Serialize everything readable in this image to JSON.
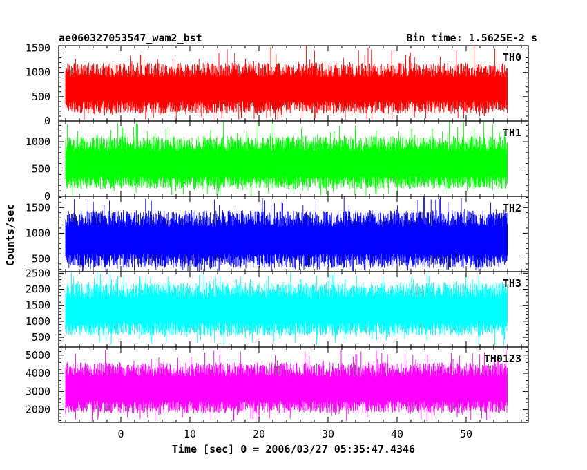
{
  "chart_data": {
    "type": "line",
    "title": "ae060327053547_wam2_bst",
    "subtitle": "Bin time: 1.5625E-2 s",
    "xlabel": "Time [sec] 0 = 2006/03/27 05:35:47.4346",
    "ylabel": "Counts/sec",
    "xlim": [
      -9,
      59
    ],
    "x_ticks": [
      0,
      10,
      20,
      30,
      40,
      50
    ],
    "x_range_data": [
      -8,
      56
    ],
    "bin_time": 0.015625,
    "panels": [
      {
        "name": "TH0",
        "color": "#ff0000",
        "ylim": [
          0,
          1550
        ],
        "y_ticks": [
          0,
          500,
          1000,
          1500
        ],
        "typical_min": 150,
        "typical_max": 1200,
        "peak_max": 1550,
        "dip_min": 20
      },
      {
        "name": "TH1",
        "color": "#00ff00",
        "ylim": [
          0,
          1380
        ],
        "y_ticks": [
          0,
          500,
          1000
        ],
        "typical_min": 130,
        "typical_max": 1100,
        "peak_max": 1380,
        "dip_min": 0
      },
      {
        "name": "TH2",
        "color": "#0000ff",
        "ylim": [
          250,
          1720
        ],
        "y_ticks": [
          500,
          1000,
          1500
        ],
        "typical_min": 320,
        "typical_max": 1450,
        "peak_max": 1720,
        "dip_min": 250
      },
      {
        "name": "TH3",
        "color": "#00ffff",
        "ylim": [
          200,
          2550
        ],
        "y_ticks": [
          500,
          1000,
          1500,
          2000,
          2500
        ],
        "typical_min": 550,
        "typical_max": 2200,
        "peak_max": 2550,
        "dip_min": 250
      },
      {
        "name": "TH0123",
        "color": "#ff00ff",
        "ylim": [
          1300,
          5450
        ],
        "y_ticks": [
          2000,
          3000,
          4000,
          5000
        ],
        "typical_min": 1800,
        "typical_max": 4600,
        "peak_max": 5300,
        "dip_min": 1350
      }
    ]
  }
}
